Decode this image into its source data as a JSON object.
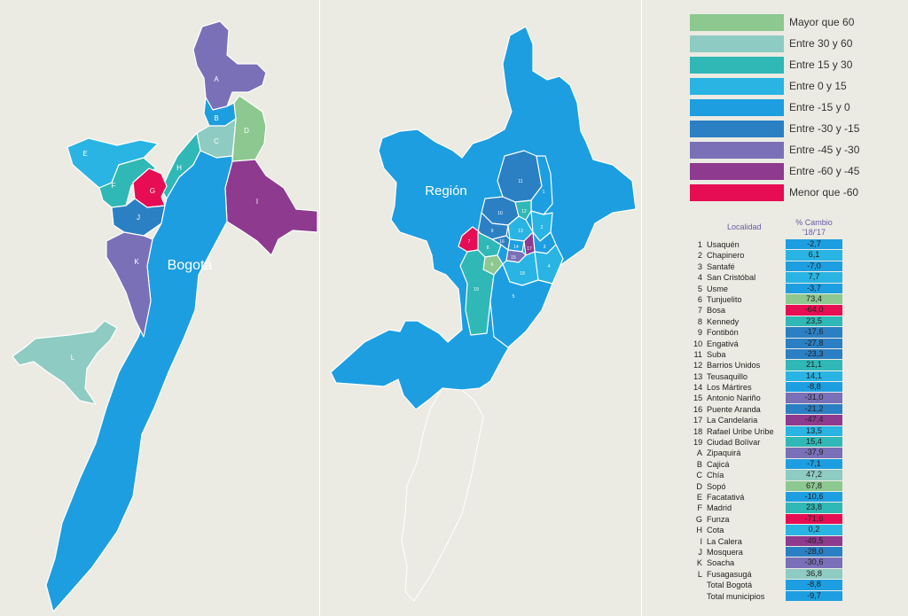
{
  "colors": {
    "background": "#ebebe3",
    "bin_gt_60": "#8cc890",
    "bin_30_60": "#8ecbc2",
    "bin_15_30": "#2fb8b6",
    "bin_0_15": "#29b4e3",
    "bin_m15_0": "#1d9ee0",
    "bin_m30_m15": "#2b80c4",
    "bin_m45_m30": "#7a70b8",
    "bin_m60_m45": "#8e3a8e",
    "bin_lt_m60": "#e60d54"
  },
  "maps": {
    "bogota_label": "Bogotá",
    "region_label": "Región",
    "municipio_letters": [
      "A",
      "B",
      "C",
      "D",
      "E",
      "F",
      "G",
      "H",
      "I",
      "J",
      "K",
      "L"
    ],
    "localidad_numbers": [
      "1",
      "2",
      "3",
      "4",
      "5",
      "6",
      "7",
      "8",
      "9",
      "10",
      "11",
      "12",
      "13",
      "14",
      "15",
      "16",
      "17",
      "18",
      "19"
    ]
  },
  "legend": {
    "items": [
      {
        "label": "Mayor que 60",
        "color": "#8cc890"
      },
      {
        "label": "Entre 30 y 60",
        "color": "#8ecbc2"
      },
      {
        "label": "Entre 15 y 30",
        "color": "#2fb8b6"
      },
      {
        "label": "Entre 0 y 15",
        "color": "#29b4e3"
      },
      {
        "label": "Entre -15 y 0",
        "color": "#1d9ee0"
      },
      {
        "label": "Entre -30 y -15",
        "color": "#2b80c4"
      },
      {
        "label": "Entre -45 y -30",
        "color": "#7a70b8"
      },
      {
        "label": "Entre -60 y -45",
        "color": "#8e3a8e"
      },
      {
        "label": "Menor que -60",
        "color": "#e60d54"
      }
    ]
  },
  "table": {
    "header_localidad": "Localidad",
    "header_cambio": "% Cambio",
    "header_period": "'18/'17",
    "rows": [
      {
        "code": "1",
        "name": "Usaquén",
        "value": "-2,7",
        "color": "#1d9ee0"
      },
      {
        "code": "2",
        "name": "Chapinero",
        "value": "6,1",
        "color": "#29b4e3"
      },
      {
        "code": "3",
        "name": "Santafé",
        "value": "-7,0",
        "color": "#1d9ee0"
      },
      {
        "code": "4",
        "name": "San Cristóbal",
        "value": "7,7",
        "color": "#29b4e3"
      },
      {
        "code": "5",
        "name": "Usme",
        "value": "-3,7",
        "color": "#1d9ee0"
      },
      {
        "code": "6",
        "name": "Tunjuelito",
        "value": "73,4",
        "color": "#8cc890"
      },
      {
        "code": "7",
        "name": "Bosa",
        "value": "-64,0",
        "color": "#e60d54"
      },
      {
        "code": "8",
        "name": "Kennedy",
        "value": "23,5",
        "color": "#2fb8b6"
      },
      {
        "code": "9",
        "name": "Fontibón",
        "value": "-17,6",
        "color": "#2b80c4"
      },
      {
        "code": "10",
        "name": "Engativá",
        "value": "-27,8",
        "color": "#2b80c4"
      },
      {
        "code": "11",
        "name": "Suba",
        "value": "-23,3",
        "color": "#2b80c4"
      },
      {
        "code": "12",
        "name": "Barrios Unidos",
        "value": "21,1",
        "color": "#2fb8b6"
      },
      {
        "code": "13",
        "name": "Teusaquillo",
        "value": "14,1",
        "color": "#29b4e3"
      },
      {
        "code": "14",
        "name": "Los Mártires",
        "value": "-8,8",
        "color": "#1d9ee0"
      },
      {
        "code": "15",
        "name": "Antonio Nariño",
        "value": "-31,0",
        "color": "#7a70b8"
      },
      {
        "code": "16",
        "name": "Puente Aranda",
        "value": "-21,2",
        "color": "#2b80c4"
      },
      {
        "code": "17",
        "name": "La Candelaria",
        "value": "-47,4",
        "color": "#8e3a8e"
      },
      {
        "code": "18",
        "name": "Rafael Uribe Uribe",
        "value": "13,5",
        "color": "#29b4e3"
      },
      {
        "code": "19",
        "name": "Ciudad Bolívar",
        "value": "15,4",
        "color": "#2fb8b6"
      },
      {
        "code": "A",
        "name": "Zipaquirá",
        "value": "-37,9",
        "color": "#7a70b8"
      },
      {
        "code": "B",
        "name": "Cajicá",
        "value": "-7,1",
        "color": "#1d9ee0"
      },
      {
        "code": "C",
        "name": "Chía",
        "value": "47,2",
        "color": "#8ecbc2"
      },
      {
        "code": "D",
        "name": "Sopó",
        "value": "67,8",
        "color": "#8cc890"
      },
      {
        "code": "E",
        "name": "Facatativá",
        "value": "-10,6",
        "color": "#1d9ee0"
      },
      {
        "code": "F",
        "name": "Madrid",
        "value": "23,8",
        "color": "#2fb8b6"
      },
      {
        "code": "G",
        "name": "Funza",
        "value": "-71,6",
        "color": "#e60d54"
      },
      {
        "code": "H",
        "name": "Cota",
        "value": "0,2",
        "color": "#29b4e3"
      },
      {
        "code": "I",
        "name": "La Calera",
        "value": "-49,5",
        "color": "#8e3a8e"
      },
      {
        "code": "J",
        "name": "Mosquera",
        "value": "-28,0",
        "color": "#2b80c4"
      },
      {
        "code": "K",
        "name": "Soacha",
        "value": "-30,6",
        "color": "#7a70b8"
      },
      {
        "code": "L",
        "name": "Fusagasugá",
        "value": "36,8",
        "color": "#8ecbc2"
      },
      {
        "code": "",
        "name": "Total Bogotá",
        "value": "-8,8",
        "color": "#1d9ee0"
      },
      {
        "code": "",
        "name": "Total municipios",
        "value": "-9,7",
        "color": "#1d9ee0"
      }
    ]
  }
}
